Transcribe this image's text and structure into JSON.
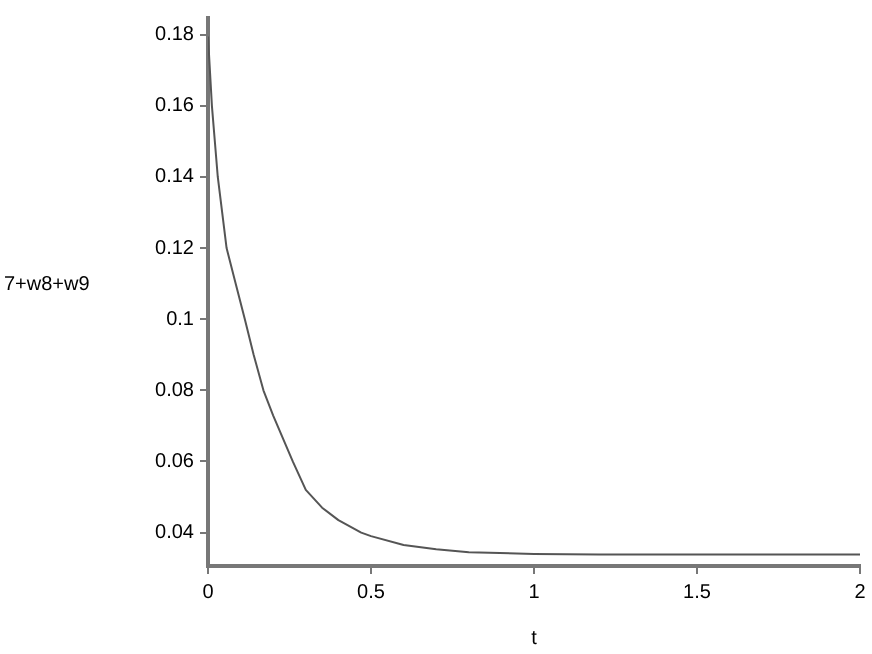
{
  "chart_data": {
    "type": "line",
    "xlabel": "t",
    "ylabel": "7+w8+w9",
    "x": [
      0,
      0.012,
      0.03,
      0.057,
      0.085,
      0.113,
      0.14,
      0.17,
      0.2,
      0.26,
      0.3,
      0.35,
      0.4,
      0.47,
      0.5,
      0.6,
      0.7,
      0.8,
      1,
      1.2,
      1.5,
      2
    ],
    "series": [
      {
        "color": "#555555",
        "values": [
          0.1795,
          0.16,
          0.14,
          0.12,
          0.11,
          0.1,
          0.09,
          0.08,
          0.0729,
          0.06,
          0.052,
          0.047,
          0.0435,
          0.04,
          0.039,
          0.0365,
          0.0353,
          0.0345,
          0.034,
          0.0338,
          0.0338,
          0.0338
        ]
      }
    ],
    "xlim": [
      0,
      2
    ],
    "xticks": [
      0,
      0.5,
      1,
      1.5,
      2
    ],
    "ylim": [
      0.0306,
      0.1847
    ],
    "yticks": [
      0.04,
      0.06,
      0.08,
      0.1,
      0.12,
      0.14,
      0.16,
      0.18
    ],
    "grid": false,
    "legend": false,
    "marker": "none",
    "line_style": "solid"
  }
}
